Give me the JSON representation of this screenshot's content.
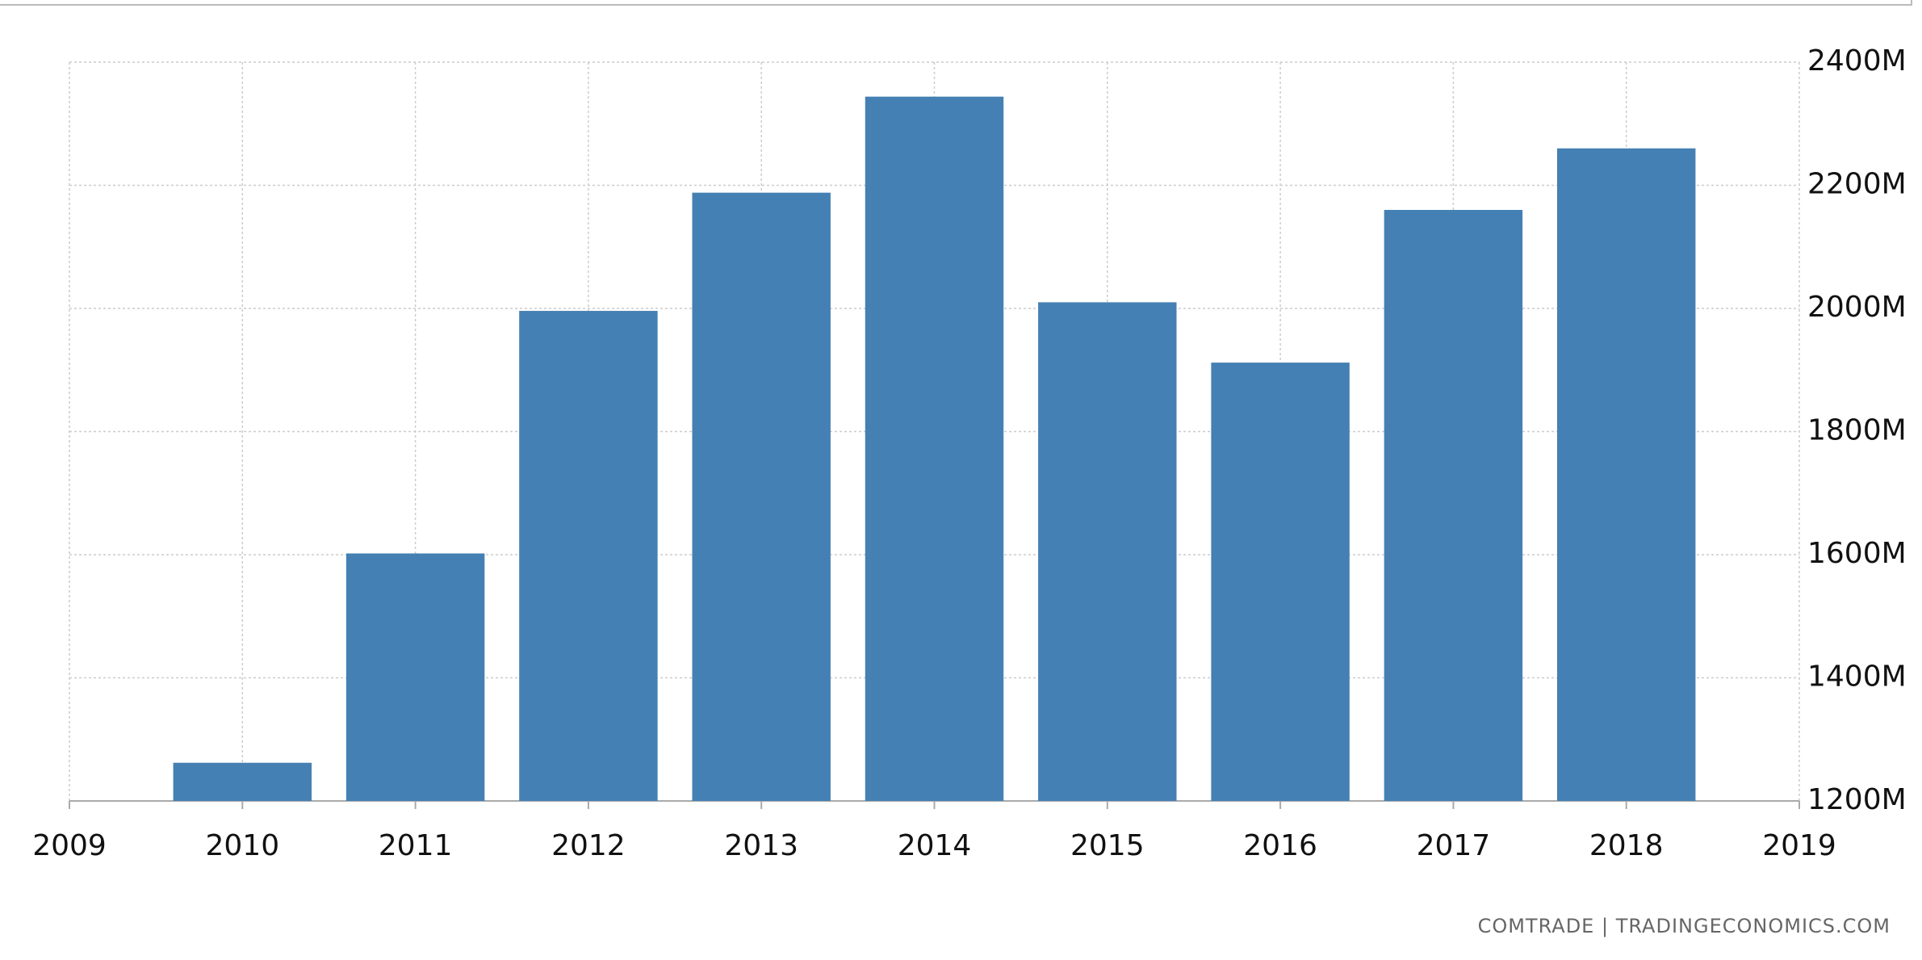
{
  "chart_data": {
    "type": "bar",
    "x": [
      2010,
      2011,
      2012,
      2013,
      2014,
      2015,
      2016,
      2017,
      2018
    ],
    "values": [
      1262,
      1602,
      1996,
      2188,
      2344,
      2010,
      1912,
      2160,
      2260
    ],
    "color": "#4480b3",
    "xlim": [
      2009,
      2019
    ],
    "xticks": [
      2009,
      2010,
      2011,
      2012,
      2013,
      2014,
      2015,
      2016,
      2017,
      2018,
      2019
    ],
    "ylim": [
      1200,
      2400
    ],
    "yticks": [
      {
        "value": 1200,
        "label": "1200M"
      },
      {
        "value": 1400,
        "label": "1400M"
      },
      {
        "value": 1600,
        "label": "1600M"
      },
      {
        "value": 1800,
        "label": "1800M"
      },
      {
        "value": 2000,
        "label": "2000M"
      },
      {
        "value": 2200,
        "label": "2200M"
      },
      {
        "value": 2400,
        "label": "2400M"
      }
    ],
    "grid": true,
    "source": "COMTRADE | TRADINGECONOMICS.COM"
  }
}
